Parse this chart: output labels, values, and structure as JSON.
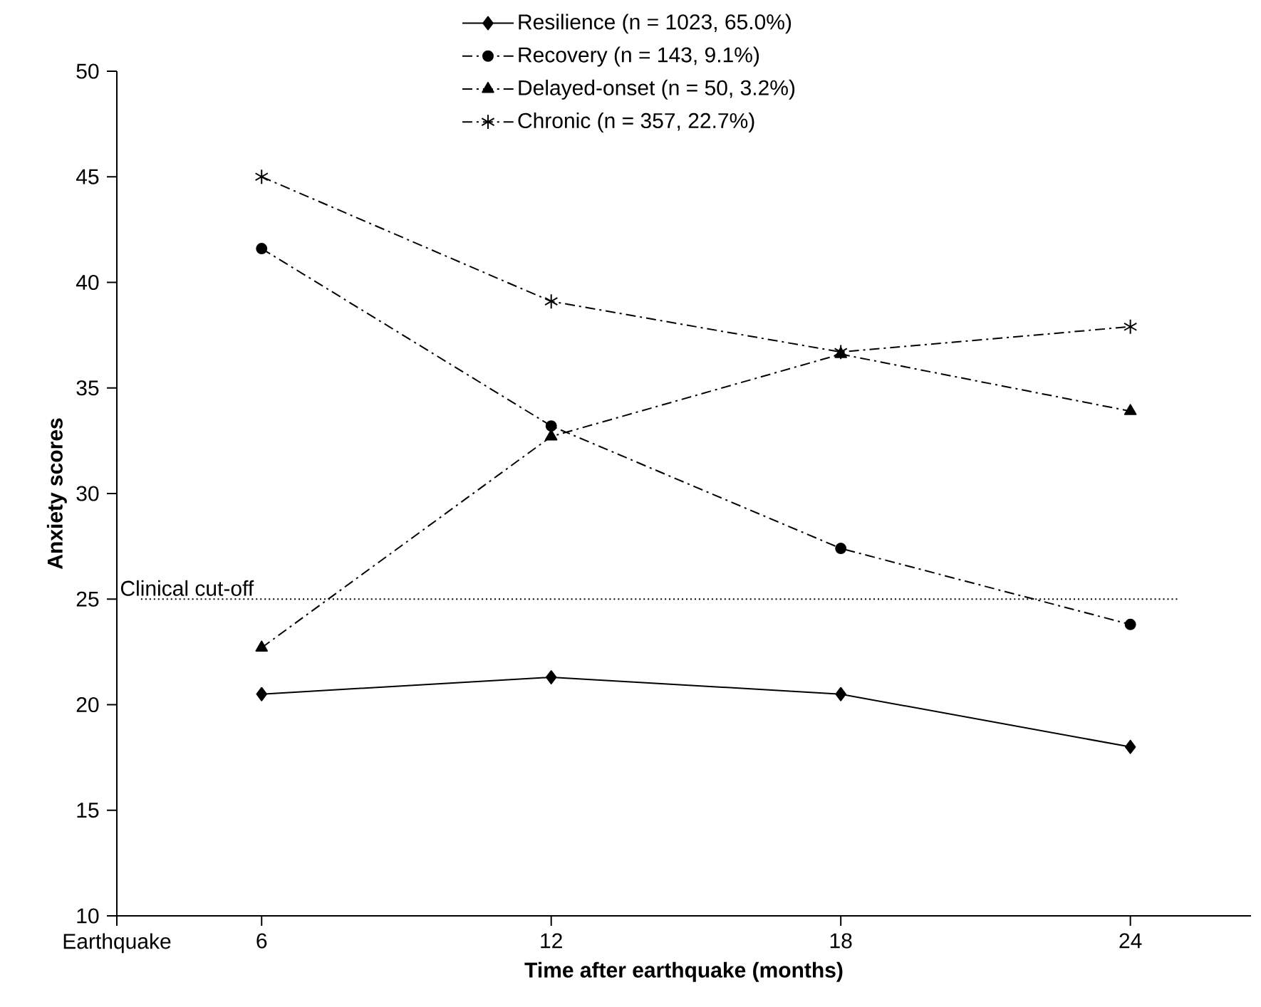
{
  "chart_data": {
    "type": "line",
    "xlabel": "Time after earthquake (months)",
    "ylabel": "Anxiety scores",
    "xlim": [
      3,
      26.5
    ],
    "ylim": [
      10,
      50
    ],
    "xticks": [
      {
        "value": 3,
        "label": "Earthquake"
      },
      6,
      12,
      18,
      24
    ],
    "yticks": [
      10,
      15,
      20,
      25,
      30,
      35,
      40,
      45,
      50
    ],
    "x": [
      6,
      12,
      18,
      24
    ],
    "series": [
      {
        "name": "Resilience (n = 1023, 65.0%)",
        "color": "#000000",
        "marker": "diamond",
        "line_style": "solid",
        "values": [
          20.5,
          21.3,
          20.5,
          18.0
        ]
      },
      {
        "name": "Recovery (n = 143, 9.1%)",
        "color": "#000000",
        "marker": "circle",
        "line_style": "dashed",
        "values": [
          41.6,
          33.2,
          27.4,
          23.8
        ]
      },
      {
        "name": "Delayed-onset (n = 50, 3.2%)",
        "color": "#000000",
        "marker": "triangle",
        "line_style": "dashed",
        "values": [
          22.7,
          32.7,
          36.6,
          33.9
        ]
      },
      {
        "name": "Chronic (n = 357, 22.7%)",
        "color": "#000000",
        "marker": "cross",
        "line_style": "dashed",
        "values": [
          45.0,
          39.1,
          36.7,
          37.9
        ]
      }
    ],
    "ref_lines": [
      {
        "axis": "y",
        "value": 25,
        "label": "Clinical cut-off",
        "color": "#000000",
        "line_style": "dotted"
      }
    ],
    "grid": false,
    "legend": "top"
  }
}
